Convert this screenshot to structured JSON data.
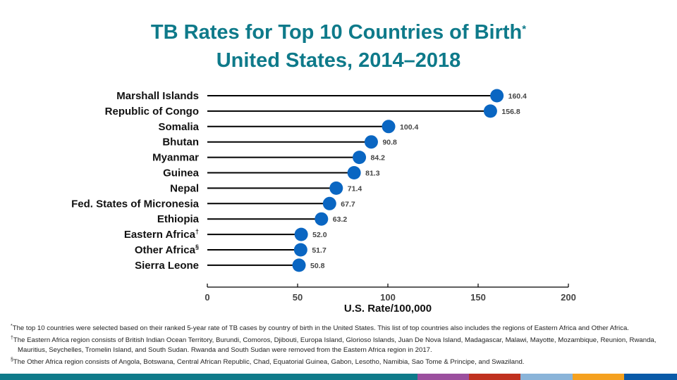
{
  "header": {
    "title_line1": "TB Rates for Top 10 Countries of Birth",
    "title_line1_mark": "*",
    "title_line2": "United States, 2014–2018"
  },
  "chart_data": {
    "type": "lollipop",
    "title": "TB Rates for Top 10 Countries of Birth* United States, 2014–2018",
    "xlabel": "U.S. Rate/100,000",
    "ylabel": "",
    "xlim": [
      0,
      200
    ],
    "xticks": [
      0,
      50,
      100,
      150,
      200
    ],
    "grid": false,
    "legend": "none",
    "marker_color": "#0a66c2",
    "categories": [
      {
        "label": "Marshall Islands",
        "mark": ""
      },
      {
        "label": "Republic of Congo",
        "mark": ""
      },
      {
        "label": "Somalia",
        "mark": ""
      },
      {
        "label": "Bhutan",
        "mark": ""
      },
      {
        "label": "Myanmar",
        "mark": ""
      },
      {
        "label": "Guinea",
        "mark": ""
      },
      {
        "label": "Nepal",
        "mark": ""
      },
      {
        "label": "Fed. States of Micronesia",
        "mark": ""
      },
      {
        "label": "Ethiopia",
        "mark": ""
      },
      {
        "label": "Eastern Africa",
        "mark": "†"
      },
      {
        "label": "Other Africa",
        "mark": "§"
      },
      {
        "label": "Sierra Leone",
        "mark": ""
      }
    ],
    "values": [
      160.4,
      156.8,
      100.4,
      90.8,
      84.2,
      81.3,
      71.4,
      67.7,
      63.2,
      52.0,
      51.7,
      50.8
    ],
    "value_labels": [
      "160.4",
      "156.8",
      "100.4",
      "90.8",
      "84.2",
      "81.3",
      "71.4",
      "67.7",
      "63.2",
      "52.0",
      "51.7",
      "50.8"
    ]
  },
  "footnotes": [
    {
      "mark": "*",
      "text": "The top 10 countries were selected based on their ranked 5-year rate of TB cases by country of birth in the United States. This list of top countries also includes the regions of Eastern Africa and Other Africa."
    },
    {
      "mark": "†",
      "text": "The Eastern Africa region consists of British Indian Ocean Territory, Burundi, Comoros, Djibouti, Europa Island, Glorioso Islands, Juan De Nova Island, Madagascar, Malawi, Mayotte, Mozambique, Reunion, Rwanda, Mauritius, Seychelles, Tromelin Island, and South Sudan. Rwanda and South Sudan were removed from the Eastern Africa region in 2017."
    },
    {
      "mark": "§",
      "text": "The Other Africa region consists of Angola, Botswana, Central African Republic, Chad, Equatorial Guinea, Gabon, Lesotho, Namibia, Sao Tome & Principe, and Swaziland."
    }
  ],
  "colorbar": [
    "#0e7a8a",
    "#9b4f9e",
    "#c0311f",
    "#8ab4d9",
    "#f5a11f",
    "#0a5aa8"
  ]
}
